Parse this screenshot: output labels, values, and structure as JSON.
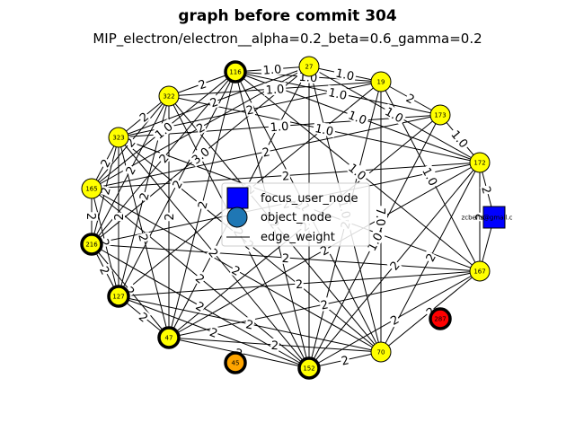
{
  "title": "graph before commit 304",
  "subtitle": "MIP_electron/electron__alpha=0.2_beta=0.6_gamma=0.2",
  "legend": {
    "focus": "focus_user_node",
    "object": "object_node",
    "edge": "edge_weight"
  },
  "focus_node": {
    "label": "zcbenz@gmail.c",
    "color": "#0000ff"
  },
  "nodes": [
    {
      "id": "116",
      "color": "#ffff00",
      "bold": true
    },
    {
      "id": "27",
      "color": "#ffff00",
      "bold": false
    },
    {
      "id": "19",
      "color": "#ffff00",
      "bold": false
    },
    {
      "id": "173",
      "color": "#ffff00",
      "bold": false
    },
    {
      "id": "172",
      "color": "#ffff00",
      "bold": false
    },
    {
      "id": "167",
      "color": "#ffff00",
      "bold": false
    },
    {
      "id": "287",
      "color": "#ff0000",
      "bold": true
    },
    {
      "id": "70",
      "color": "#ffff00",
      "bold": false
    },
    {
      "id": "152",
      "color": "#ffff00",
      "bold": true
    },
    {
      "id": "45",
      "color": "#ffa500",
      "bold": true
    },
    {
      "id": "47",
      "color": "#ffff00",
      "bold": true
    },
    {
      "id": "127",
      "color": "#ffff00",
      "bold": true
    },
    {
      "id": "216",
      "color": "#ffff00",
      "bold": true
    },
    {
      "id": "165",
      "color": "#ffff00",
      "bold": false
    },
    {
      "id": "323",
      "color": "#ffff00",
      "bold": false
    },
    {
      "id": "322",
      "color": "#ffff00",
      "bold": false
    }
  ],
  "edges": [
    {
      "a": "116",
      "b": "27",
      "w": "1.0"
    },
    {
      "a": "27",
      "b": "19",
      "w": "1.0"
    },
    {
      "a": "19",
      "b": "173",
      "w": "2"
    },
    {
      "a": "173",
      "b": "172",
      "w": "1.0"
    },
    {
      "a": "116",
      "b": "322",
      "w": "2"
    },
    {
      "a": "322",
      "b": "323",
      "w": "2"
    },
    {
      "a": "323",
      "b": "165",
      "w": "2"
    },
    {
      "a": "165",
      "b": "216",
      "w": "2"
    },
    {
      "a": "216",
      "b": "127",
      "w": "2"
    },
    {
      "a": "127",
      "b": "47",
      "w": "2"
    },
    {
      "a": "47",
      "b": "152",
      "w": "2"
    },
    {
      "a": "152",
      "b": "70",
      "w": "2"
    },
    {
      "a": "70",
      "b": "167",
      "w": "2"
    },
    {
      "a": "167",
      "b": "172",
      "w": "2"
    },
    {
      "a": "172",
      "b": "focus",
      "w": "2"
    },
    {
      "a": "focus",
      "b": "167",
      "w": ""
    },
    {
      "a": "116",
      "b": "172",
      "w": "1.0"
    },
    {
      "a": "116",
      "b": "19",
      "w": "1.0"
    },
    {
      "a": "116",
      "b": "173",
      "w": "1.0"
    },
    {
      "a": "116",
      "b": "167",
      "w": "1.0"
    },
    {
      "a": "116",
      "b": "70",
      "w": "1.0"
    },
    {
      "a": "116",
      "b": "47",
      "w": "2"
    },
    {
      "a": "116",
      "b": "165",
      "w": "1.0"
    },
    {
      "a": "116",
      "b": "127",
      "w": "2"
    },
    {
      "a": "116",
      "b": "216",
      "w": "2"
    },
    {
      "a": "116",
      "b": "152",
      "w": "2"
    },
    {
      "a": "27",
      "b": "323",
      "w": "2"
    },
    {
      "a": "27",
      "b": "165",
      "w": "2"
    },
    {
      "a": "27",
      "b": "47",
      "w": "2"
    },
    {
      "a": "27",
      "b": "152",
      "w": "2"
    },
    {
      "a": "27",
      "b": "70",
      "w": "1.0"
    },
    {
      "a": "27",
      "b": "172",
      "w": "1.0"
    },
    {
      "a": "27",
      "b": "216",
      "w": "3.0"
    },
    {
      "a": "19",
      "b": "323",
      "w": "2"
    },
    {
      "a": "19",
      "b": "322",
      "w": "1.0"
    },
    {
      "a": "19",
      "b": "152",
      "w": "2"
    },
    {
      "a": "19",
      "b": "167",
      "w": "1.0"
    },
    {
      "a": "19",
      "b": "127",
      "w": "2"
    },
    {
      "a": "19",
      "b": "70",
      "w": "7.0"
    },
    {
      "a": "173",
      "b": "323",
      "w": "1.0"
    },
    {
      "a": "173",
      "b": "165",
      "w": "2"
    },
    {
      "a": "173",
      "b": "47",
      "w": "2"
    },
    {
      "a": "173",
      "b": "152",
      "w": "1.0"
    },
    {
      "a": "172",
      "b": "322",
      "w": "1.0"
    },
    {
      "a": "172",
      "b": "165",
      "w": "2"
    },
    {
      "a": "172",
      "b": "47",
      "w": "2"
    },
    {
      "a": "172",
      "b": "152",
      "w": "2"
    },
    {
      "a": "172",
      "b": "216",
      "w": "2"
    },
    {
      "a": "172",
      "b": "70",
      "w": "2"
    },
    {
      "a": "167",
      "b": "323",
      "w": "2"
    },
    {
      "a": "167",
      "b": "216",
      "w": "2"
    },
    {
      "a": "167",
      "b": "127",
      "w": "2"
    },
    {
      "a": "167",
      "b": "47",
      "w": "2"
    },
    {
      "a": "167",
      "b": "152",
      "w": "2"
    },
    {
      "a": "70",
      "b": "322",
      "w": "2"
    },
    {
      "a": "70",
      "b": "323",
      "w": "2"
    },
    {
      "a": "70",
      "b": "165",
      "w": "2"
    },
    {
      "a": "70",
      "b": "127",
      "w": "2"
    },
    {
      "a": "70",
      "b": "47",
      "w": "2"
    },
    {
      "a": "152",
      "b": "322",
      "w": "2"
    },
    {
      "a": "152",
      "b": "323",
      "w": "2"
    },
    {
      "a": "152",
      "b": "165",
      "w": "2"
    },
    {
      "a": "152",
      "b": "216",
      "w": "2"
    },
    {
      "a": "152",
      "b": "127",
      "w": "2"
    },
    {
      "a": "47",
      "b": "322",
      "w": "2"
    },
    {
      "a": "47",
      "b": "323",
      "w": "2"
    },
    {
      "a": "47",
      "b": "216",
      "w": "2"
    },
    {
      "a": "127",
      "b": "322",
      "w": "2"
    },
    {
      "a": "127",
      "b": "323",
      "w": "2"
    },
    {
      "a": "216",
      "b": "322",
      "w": "2"
    },
    {
      "a": "216",
      "b": "323",
      "w": "2"
    },
    {
      "a": "165",
      "b": "322",
      "w": "2"
    },
    {
      "a": "165",
      "b": "127",
      "w": "2"
    }
  ]
}
